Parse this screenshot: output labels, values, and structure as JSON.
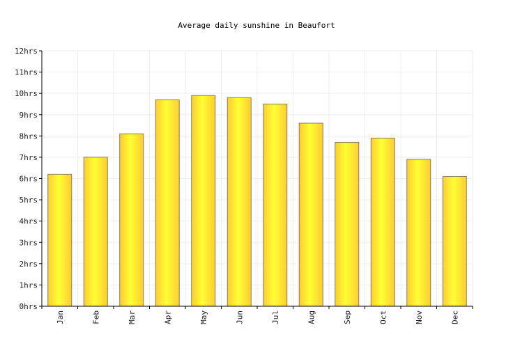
{
  "chart_data": {
    "type": "bar",
    "title": "Average daily sunshine in Beaufort",
    "xlabel": "",
    "ylabel": "",
    "categories": [
      "Jan",
      "Feb",
      "Mar",
      "Apr",
      "May",
      "Jun",
      "Jul",
      "Aug",
      "Sep",
      "Oct",
      "Nov",
      "Dec"
    ],
    "values": [
      6.2,
      7.0,
      8.1,
      9.7,
      9.9,
      9.8,
      9.5,
      8.6,
      7.7,
      7.9,
      6.9,
      6.1
    ],
    "ylim": [
      0,
      12
    ],
    "yticks": [
      0,
      1,
      2,
      3,
      4,
      5,
      6,
      7,
      8,
      9,
      10,
      11,
      12
    ],
    "ytick_labels": [
      "0hrs",
      "1hrs",
      "2hrs",
      "3hrs",
      "4hrs",
      "5hrs",
      "6hrs",
      "7hrs",
      "8hrs",
      "9hrs",
      "10hrs",
      "11hrs",
      "12hrs"
    ],
    "grid": true,
    "legend": "none",
    "colors": {
      "bar_light": "#ffff33",
      "bar_dark": "#ffcc33",
      "bar_outline": "#808060",
      "grid": "#eeeeee",
      "axis": "#000000"
    }
  }
}
